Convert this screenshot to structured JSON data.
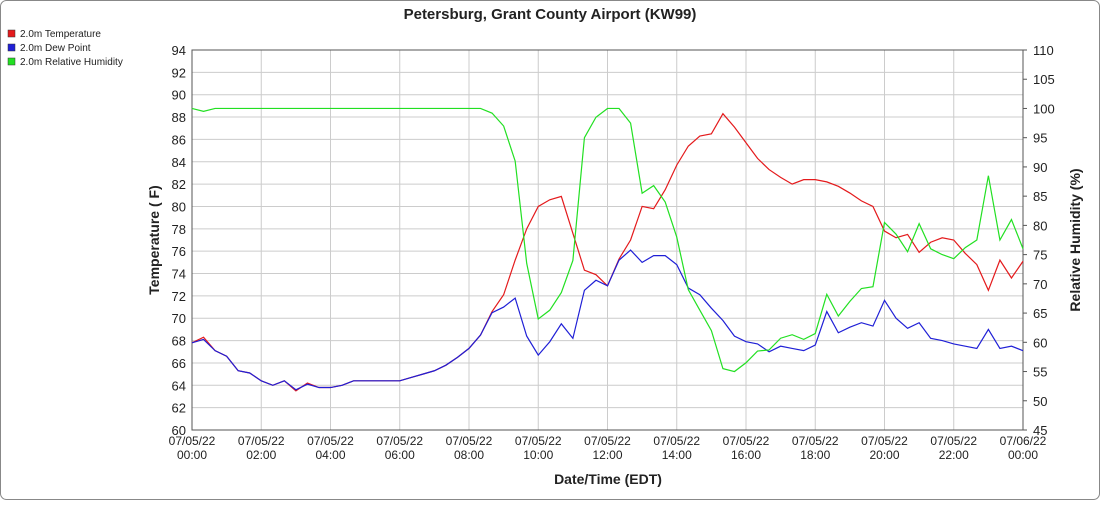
{
  "chart_data": {
    "type": "line",
    "title": "Petersburg, Grant County Airport (KW99)",
    "xlabel": "Date/Time (EDT)",
    "ylabel": "Temperature ( F)",
    "y2label": "Relative Humidity (%)",
    "x": [
      "07/05/22 00:00",
      "07/05/22 00:20",
      "07/05/22 00:40",
      "07/05/22 01:00",
      "07/05/22 01:20",
      "07/05/22 01:40",
      "07/05/22 02:00",
      "07/05/22 02:20",
      "07/05/22 02:40",
      "07/05/22 03:00",
      "07/05/22 03:20",
      "07/05/22 03:40",
      "07/05/22 04:00",
      "07/05/22 04:20",
      "07/05/22 04:40",
      "07/05/22 05:00",
      "07/05/22 05:20",
      "07/05/22 05:40",
      "07/05/22 06:00",
      "07/05/22 06:20",
      "07/05/22 06:40",
      "07/05/22 07:00",
      "07/05/22 07:20",
      "07/05/22 07:40",
      "07/05/22 08:00",
      "07/05/22 08:20",
      "07/05/22 08:40",
      "07/05/22 09:00",
      "07/05/22 09:20",
      "07/05/22 09:40",
      "07/05/22 10:00",
      "07/05/22 10:20",
      "07/05/22 10:40",
      "07/05/22 11:00",
      "07/05/22 11:20",
      "07/05/22 11:40",
      "07/05/22 12:00",
      "07/05/22 12:20",
      "07/05/22 12:40",
      "07/05/22 13:00",
      "07/05/22 13:20",
      "07/05/22 13:40",
      "07/05/22 14:00",
      "07/05/22 14:20",
      "07/05/22 14:40",
      "07/05/22 15:00",
      "07/05/22 15:20",
      "07/05/22 15:40",
      "07/05/22 16:00",
      "07/05/22 16:20",
      "07/05/22 16:40",
      "07/05/22 17:00",
      "07/05/22 17:20",
      "07/05/22 17:40",
      "07/05/22 18:00",
      "07/05/22 18:20",
      "07/05/22 18:40",
      "07/05/22 19:00",
      "07/05/22 19:20",
      "07/05/22 19:40",
      "07/05/22 20:00",
      "07/05/22 20:20",
      "07/05/22 20:40",
      "07/05/22 21:00",
      "07/05/22 21:20",
      "07/05/22 21:40",
      "07/05/22 22:00",
      "07/05/22 22:20",
      "07/05/22 22:40",
      "07/05/22 23:00",
      "07/05/22 23:20",
      "07/05/22 23:40",
      "07/06/22 00:00"
    ],
    "series": [
      {
        "name": "2.0m Temperature",
        "color": "#e41a1c",
        "values": [
          67.8,
          68.3,
          67.1,
          66.6,
          65.3,
          65.1,
          64.4,
          64.0,
          64.4,
          63.5,
          64.2,
          63.8,
          63.8,
          64.0,
          64.4,
          64.4,
          64.4,
          64.4,
          64.4,
          64.7,
          65.0,
          65.3,
          65.8,
          66.5,
          67.3,
          68.5,
          70.6,
          72.1,
          75.2,
          78.0,
          80.0,
          80.6,
          80.9,
          77.6,
          74.3,
          73.9,
          72.9,
          75.3,
          77.0,
          80.0,
          79.8,
          81.5,
          83.7,
          85.4,
          86.3,
          86.5,
          88.3,
          87.1,
          85.7,
          84.3,
          83.3,
          82.6,
          82.0,
          82.4,
          82.4,
          82.2,
          81.8,
          81.2,
          80.5,
          80.0,
          77.8,
          77.2,
          77.5,
          75.9,
          76.8,
          77.2,
          77.0,
          75.8,
          74.8,
          72.5,
          75.2,
          73.6,
          75.1
        ]
      },
      {
        "name": "2.0m Dew Point",
        "color": "#1f1fd6",
        "values": [
          67.8,
          68.1,
          67.1,
          66.6,
          65.3,
          65.1,
          64.4,
          64.0,
          64.4,
          63.6,
          64.1,
          63.8,
          63.8,
          64.0,
          64.4,
          64.4,
          64.4,
          64.4,
          64.4,
          64.7,
          65.0,
          65.3,
          65.8,
          66.5,
          67.3,
          68.5,
          70.5,
          71.0,
          71.8,
          68.4,
          66.7,
          67.9,
          69.5,
          68.2,
          72.5,
          73.4,
          72.9,
          75.2,
          76.1,
          75.0,
          75.6,
          75.6,
          74.8,
          72.7,
          72.1,
          70.9,
          69.8,
          68.4,
          67.9,
          67.7,
          67.0,
          67.5,
          67.3,
          67.1,
          67.6,
          70.6,
          68.7,
          69.2,
          69.6,
          69.3,
          71.6,
          70.0,
          69.1,
          69.6,
          68.2,
          68.0,
          67.7,
          67.5,
          67.3,
          69.0,
          67.3,
          67.5,
          67.1
        ]
      },
      {
        "name": "2.0m Relative Humidity",
        "color": "#22e022",
        "axis": "y2",
        "values": [
          100,
          99.5,
          100,
          100,
          100,
          100,
          100,
          100,
          100,
          100,
          100,
          100,
          100,
          100,
          100,
          100,
          100,
          100,
          100,
          100,
          100,
          100,
          100,
          100,
          100,
          100,
          99.2,
          97,
          91,
          73.5,
          64,
          65.5,
          68.5,
          74,
          95,
          98.5,
          100,
          100,
          97.5,
          85.5,
          86.8,
          84,
          78,
          69,
          65.5,
          62,
          55.5,
          55,
          56.5,
          58.5,
          58.7,
          60.7,
          61.3,
          60.5,
          61.5,
          68.2,
          64.5,
          67,
          69.2,
          69.5,
          80.5,
          78.5,
          75.5,
          80.3,
          76,
          75,
          74.3,
          76.2,
          77.5,
          88.5,
          77.5,
          81,
          76
        ]
      }
    ],
    "xlim": [
      "07/05/22 00:00",
      "07/06/22 00:00"
    ],
    "xticks": [
      "07/05/22 00:00",
      "07/05/22 02:00",
      "07/05/22 04:00",
      "07/05/22 06:00",
      "07/05/22 08:00",
      "07/05/22 10:00",
      "07/05/22 12:00",
      "07/05/22 14:00",
      "07/05/22 16:00",
      "07/05/22 18:00",
      "07/05/22 20:00",
      "07/05/22 22:00",
      "07/06/22 00:00"
    ],
    "ylim": [
      60,
      94
    ],
    "yticks": [
      60,
      62,
      64,
      66,
      68,
      70,
      72,
      74,
      76,
      78,
      80,
      82,
      84,
      86,
      88,
      90,
      92,
      94
    ],
    "y2lim": [
      45,
      110
    ],
    "y2ticks": [
      45,
      50,
      55,
      60,
      65,
      70,
      75,
      80,
      85,
      90,
      95,
      100,
      105,
      110
    ],
    "grid": true,
    "legend": "upper left"
  }
}
